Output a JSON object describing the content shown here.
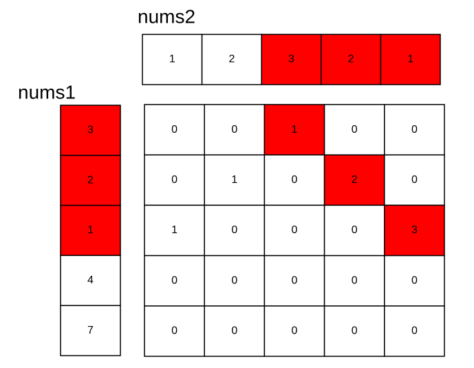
{
  "highlight_color": "#ff0000",
  "nums2": {
    "label": "nums2",
    "cells": [
      {
        "value": 1,
        "highlight": false
      },
      {
        "value": 2,
        "highlight": false
      },
      {
        "value": 3,
        "highlight": true
      },
      {
        "value": 2,
        "highlight": true
      },
      {
        "value": 1,
        "highlight": true
      }
    ]
  },
  "nums1": {
    "label": "nums1",
    "cells": [
      {
        "value": 3,
        "highlight": true
      },
      {
        "value": 2,
        "highlight": true
      },
      {
        "value": 1,
        "highlight": true
      },
      {
        "value": 4,
        "highlight": false
      },
      {
        "value": 7,
        "highlight": false
      }
    ]
  },
  "table": {
    "rows": [
      [
        {
          "value": 0,
          "highlight": false
        },
        {
          "value": 0,
          "highlight": false
        },
        {
          "value": 1,
          "highlight": true
        },
        {
          "value": 0,
          "highlight": false
        },
        {
          "value": 0,
          "highlight": false
        }
      ],
      [
        {
          "value": 0,
          "highlight": false
        },
        {
          "value": 1,
          "highlight": false
        },
        {
          "value": 0,
          "highlight": false
        },
        {
          "value": 2,
          "highlight": true
        },
        {
          "value": 0,
          "highlight": false
        }
      ],
      [
        {
          "value": 1,
          "highlight": false
        },
        {
          "value": 0,
          "highlight": false
        },
        {
          "value": 0,
          "highlight": false
        },
        {
          "value": 0,
          "highlight": false
        },
        {
          "value": 3,
          "highlight": true
        }
      ],
      [
        {
          "value": 0,
          "highlight": false
        },
        {
          "value": 0,
          "highlight": false
        },
        {
          "value": 0,
          "highlight": false
        },
        {
          "value": 0,
          "highlight": false
        },
        {
          "value": 0,
          "highlight": false
        }
      ],
      [
        {
          "value": 0,
          "highlight": false
        },
        {
          "value": 0,
          "highlight": false
        },
        {
          "value": 0,
          "highlight": false
        },
        {
          "value": 0,
          "highlight": false
        },
        {
          "value": 0,
          "highlight": false
        }
      ]
    ]
  }
}
